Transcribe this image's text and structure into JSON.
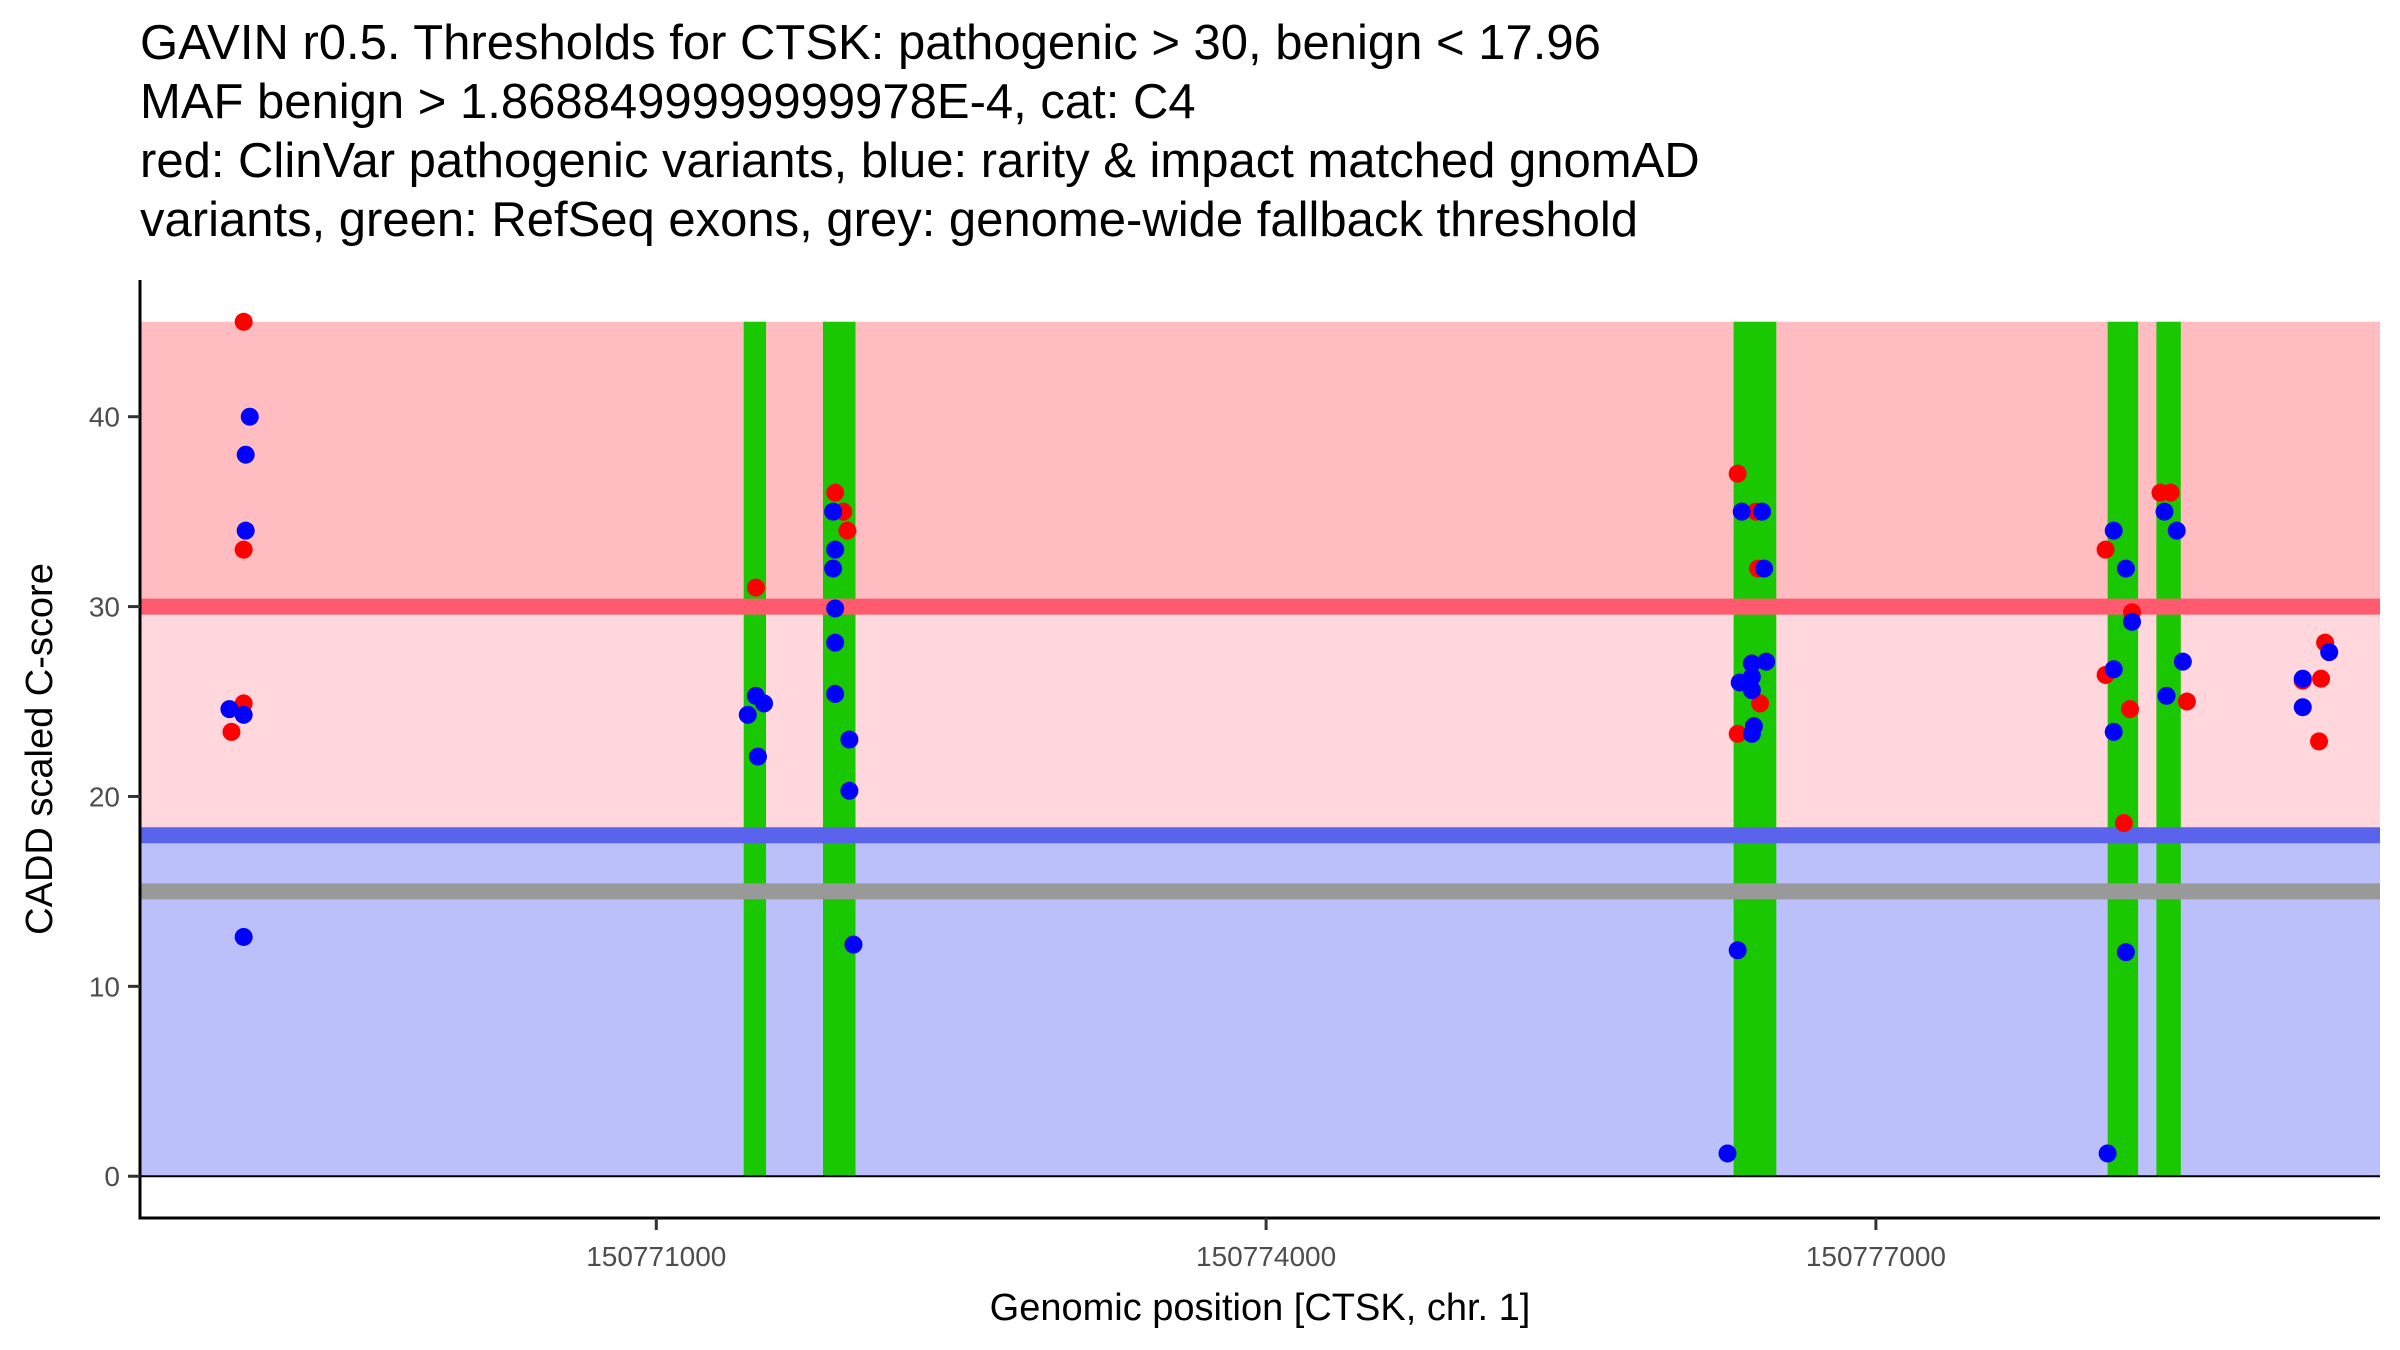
{
  "chart_data": {
    "type": "scatter",
    "title_lines": [
      "GAVIN r0.5. Thresholds for CTSK: pathogenic > 30, benign < 17.96",
      "MAF benign > 1.8688499999999978E-4, cat: C4",
      "red: ClinVar pathogenic variants, blue: rarity & impact matched gnomAD",
      "variants, green: RefSeq exons, grey: genome-wide fallback threshold"
    ],
    "xlabel": "Genomic position [CTSK, chr. 1]",
    "ylabel": "CADD scaled C-score",
    "xlim": [
      150768460,
      150779480
    ],
    "ylim": [
      -2.2,
      47.2
    ],
    "x_ticks": [
      150771000,
      150774000,
      150777000
    ],
    "x_tick_labels": [
      "150771000",
      "150774000",
      "150777000"
    ],
    "y_ticks": [
      0,
      10,
      20,
      30,
      40
    ],
    "y_tick_labels": [
      "0",
      "10",
      "20",
      "30",
      "40"
    ],
    "thresholds": {
      "pathogenic": 30,
      "benign": 17.96,
      "fallback": 15
    },
    "bands": [
      {
        "name": "pathogenic-zone",
        "y_from": 30,
        "y_to": 45,
        "color": "#ffbcc1"
      },
      {
        "name": "uncertain-zone",
        "y_from": 17.96,
        "y_to": 30,
        "color": "#ffd7dc"
      },
      {
        "name": "benign-zone",
        "y_from": 0,
        "y_to": 17.96,
        "color": "#bbc0fb"
      }
    ],
    "threshold_lines": [
      {
        "name": "pathogenic-threshold",
        "y": 30,
        "color": "#ff5a6e"
      },
      {
        "name": "benign-threshold",
        "y": 17.96,
        "color": "#5a63ec"
      },
      {
        "name": "fallback-threshold",
        "y": 15,
        "color": "#999999"
      }
    ],
    "exons": [
      {
        "start": 150771430,
        "end": 150771540
      },
      {
        "start": 150771820,
        "end": 150771980
      },
      {
        "start": 150776300,
        "end": 150776510
      },
      {
        "start": 150778140,
        "end": 150778290
      },
      {
        "start": 150778380,
        "end": 150778500
      }
    ],
    "series": [
      {
        "name": "ClinVar pathogenic",
        "color": "#ff0000",
        "points": [
          [
            150768970,
            45
          ],
          [
            150768970,
            33
          ],
          [
            150768970,
            24.9
          ],
          [
            150768910,
            23.4
          ],
          [
            150771490,
            31
          ],
          [
            150771880,
            36
          ],
          [
            150771920,
            35
          ],
          [
            150771940,
            34
          ],
          [
            150776320,
            37
          ],
          [
            150776410,
            35
          ],
          [
            150776420,
            32
          ],
          [
            150776430,
            24.9
          ],
          [
            150776320,
            23.3
          ],
          [
            150778130,
            33
          ],
          [
            150778130,
            26.4
          ],
          [
            150778220,
            18.6
          ],
          [
            150778260,
            29.7
          ],
          [
            150778250,
            24.6
          ],
          [
            150778400,
            36
          ],
          [
            150778450,
            36
          ],
          [
            150778530,
            25
          ],
          [
            150779100,
            26.1
          ],
          [
            150779190,
            26.2
          ],
          [
            150779180,
            22.9
          ],
          [
            150779210,
            28.1
          ]
        ]
      },
      {
        "name": "gnomAD matched",
        "color": "#0000ff",
        "points": [
          [
            150769000,
            40
          ],
          [
            150768980,
            38
          ],
          [
            150768980,
            34
          ],
          [
            150768900,
            24.6
          ],
          [
            150768970,
            24.3
          ],
          [
            150768970,
            12.6
          ],
          [
            150771450,
            24.3
          ],
          [
            150771490,
            25.3
          ],
          [
            150771500,
            22.1
          ],
          [
            150771530,
            24.9
          ],
          [
            150771870,
            35
          ],
          [
            150771880,
            33
          ],
          [
            150771870,
            32
          ],
          [
            150771880,
            29.9
          ],
          [
            150771880,
            28.1
          ],
          [
            150771880,
            25.4
          ],
          [
            150771950,
            23
          ],
          [
            150771950,
            20.3
          ],
          [
            150771970,
            12.2
          ],
          [
            150776340,
            35
          ],
          [
            150776440,
            35
          ],
          [
            150776450,
            32
          ],
          [
            150776390,
            27
          ],
          [
            150776460,
            27.1
          ],
          [
            150776330,
            26
          ],
          [
            150776390,
            26.3
          ],
          [
            150776390,
            25.6
          ],
          [
            150776400,
            23.7
          ],
          [
            150776390,
            23.3
          ],
          [
            150776320,
            11.9
          ],
          [
            150776270,
            1.2
          ],
          [
            150778170,
            34
          ],
          [
            150778230,
            32
          ],
          [
            150778170,
            26.7
          ],
          [
            150778170,
            23.4
          ],
          [
            150778230,
            11.8
          ],
          [
            150778140,
            1.2
          ],
          [
            150778260,
            29.2
          ],
          [
            150778420,
            35
          ],
          [
            150778480,
            34
          ],
          [
            150778510,
            27.1
          ],
          [
            150778430,
            25.3
          ],
          [
            150779100,
            26.2
          ],
          [
            150779100,
            24.7
          ],
          [
            150779230,
            27.6
          ]
        ]
      }
    ]
  }
}
